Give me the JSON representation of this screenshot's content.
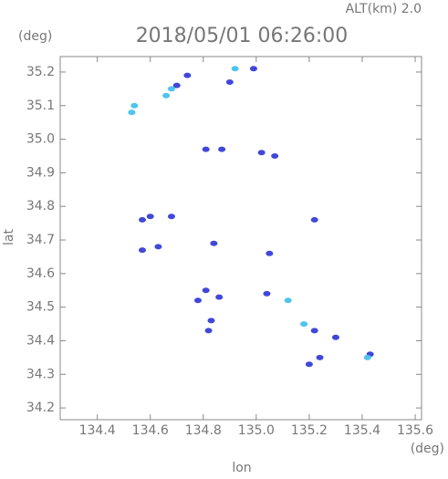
{
  "chart_data": {
    "type": "scatter",
    "title": "2018/05/01 06:26:00",
    "subtitle": "ALT(km) 2.0",
    "x_label": "lon",
    "y_label": "lat",
    "x_unit": "(deg)",
    "y_unit": "(deg)",
    "xlim": [
      134.26,
      135.624
    ],
    "ylim": [
      34.165,
      35.246
    ],
    "xticks": [
      134.4,
      134.6,
      134.8,
      {
        "value": 135,
        "label": "135.0"
      },
      135.2,
      135.4,
      135.6
    ],
    "yticks": [
      34.2,
      34.3,
      34.4,
      34.5,
      34.6,
      34.7,
      34.8,
      34.9,
      {
        "value": 35,
        "label": "35.0"
      },
      35.1,
      35.2
    ],
    "series": [
      {
        "color": "#4048d8",
        "x": [
          134.7,
          134.74,
          134.99,
          134.9,
          134.81,
          134.87,
          135.02,
          135.07,
          134.57,
          134.6,
          134.68,
          135.22,
          134.57,
          134.63,
          134.84,
          135.05,
          134.81,
          134.78,
          134.86,
          135.04,
          134.83,
          134.82,
          135.22,
          135.3,
          135.2,
          135.24,
          135.43
        ],
        "y": [
          35.16,
          35.19,
          35.21,
          35.17,
          34.97,
          34.97,
          34.96,
          34.95,
          34.76,
          34.77,
          34.77,
          34.76,
          34.67,
          34.68,
          34.69,
          34.66,
          34.55,
          34.52,
          34.53,
          34.54,
          34.46,
          34.43,
          34.43,
          34.41,
          34.33,
          34.35,
          34.36
        ]
      },
      {
        "color": "#4fc4ee",
        "x": [
          134.53,
          134.54,
          134.66,
          134.68,
          134.92,
          135.12,
          135.18,
          135.42
        ],
        "y": [
          35.08,
          35.1,
          35.13,
          35.15,
          35.21,
          34.52,
          34.45,
          34.35
        ]
      }
    ]
  }
}
